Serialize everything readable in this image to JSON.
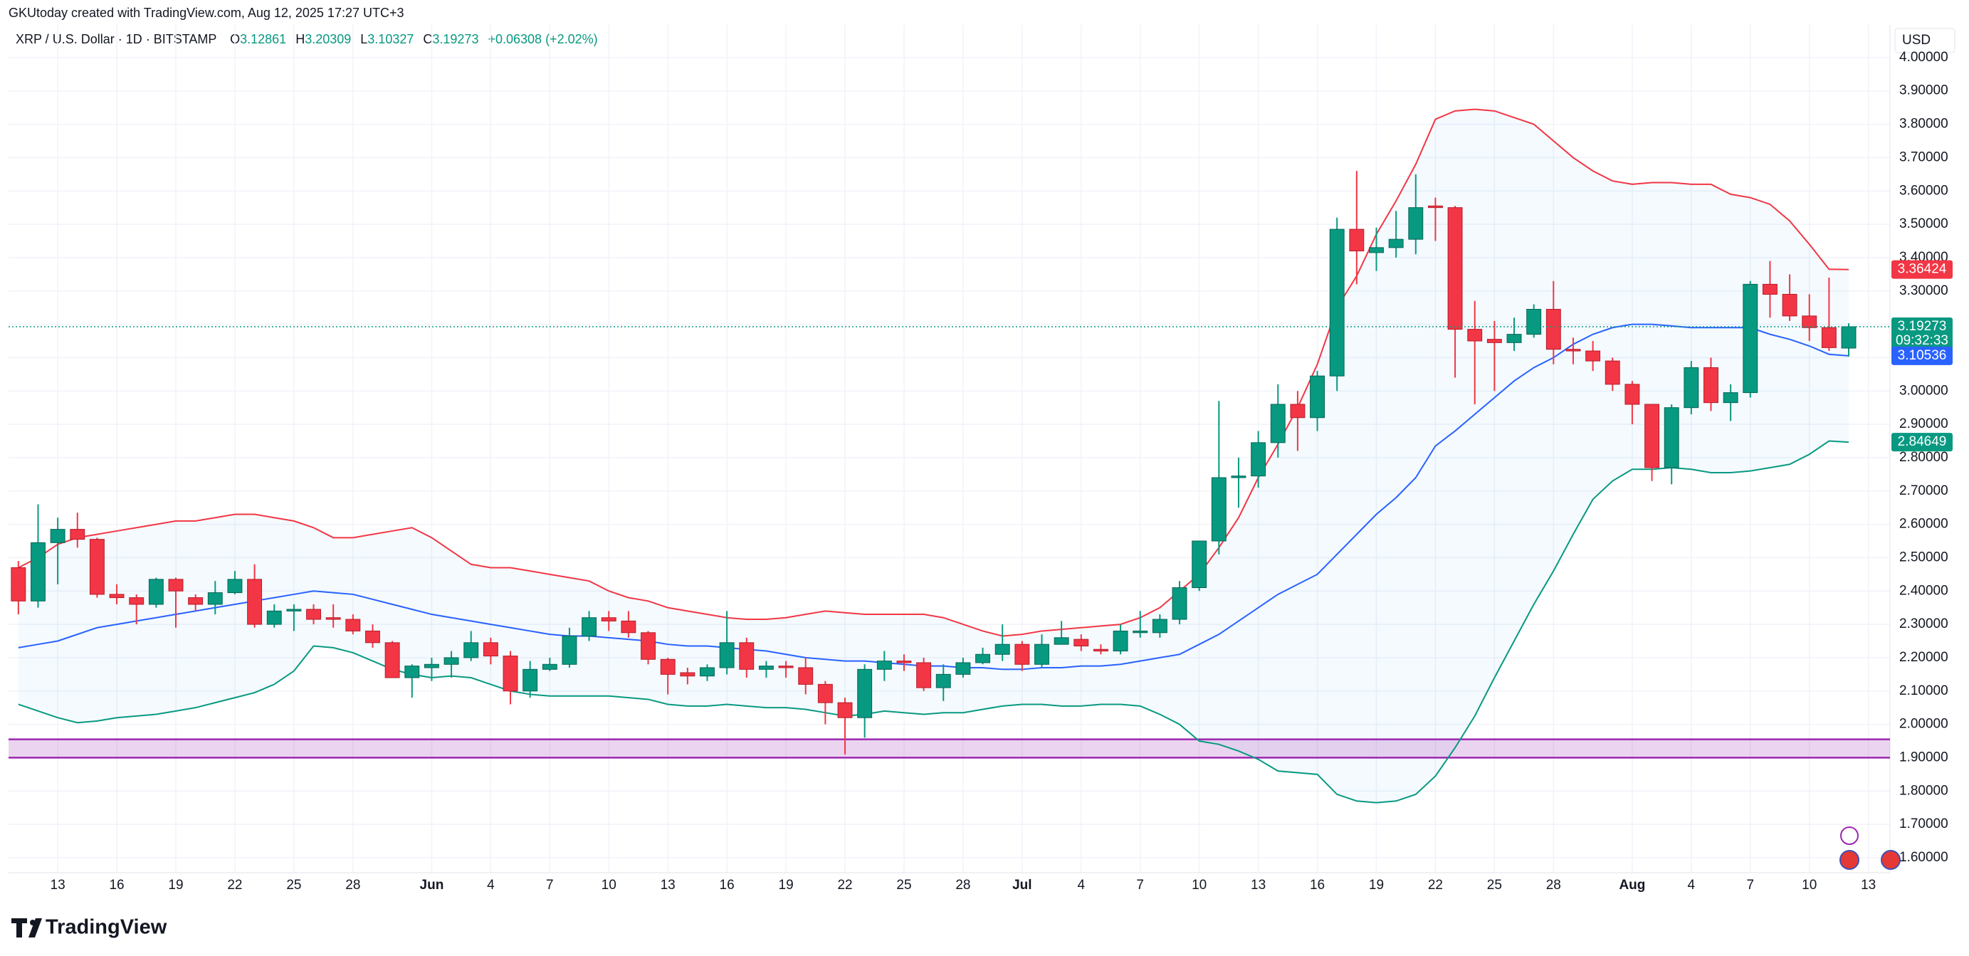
{
  "chart_data": {
    "type": "candlestick",
    "credit": "GKUtoday created with TradingView.com, Aug 12, 2025 17:27 UTC+3",
    "symbol": "XRP / U.S. Dollar · 1D · BITSTAMP",
    "ohlc_labels": [
      "O",
      "H",
      "L",
      "C"
    ],
    "change": "+0.06308 (+2.02%)",
    "currency": "USD",
    "countdown": "09:32:33",
    "brand": "TradingView",
    "up_color": "#089981",
    "down_color": "#f23645",
    "categories": [
      null,
      null,
      "13",
      null,
      null,
      "16",
      null,
      null,
      "19",
      null,
      null,
      "22",
      null,
      null,
      "25",
      null,
      null,
      "28",
      null,
      null,
      null,
      "Jun",
      null,
      null,
      "4",
      null,
      null,
      "7",
      null,
      null,
      "10",
      null,
      null,
      "13",
      null,
      null,
      "16",
      null,
      null,
      "19",
      null,
      null,
      "22",
      null,
      null,
      "25",
      null,
      null,
      "28",
      null,
      null,
      "Jul",
      null,
      null,
      "4",
      null,
      null,
      "7",
      null,
      null,
      "10",
      null,
      null,
      "13",
      null,
      null,
      "16",
      null,
      null,
      "19",
      null,
      null,
      "22",
      null,
      null,
      "25",
      null,
      null,
      "28",
      null,
      null,
      null,
      "Aug",
      null,
      null,
      "4",
      null,
      null,
      "7",
      null,
      null,
      "10",
      null,
      null,
      "13"
    ],
    "open": [
      2.47,
      2.37,
      2.545,
      2.585,
      2.555,
      2.39,
      2.38,
      2.36,
      2.435,
      2.38,
      2.36,
      2.395,
      2.435,
      2.3,
      2.34,
      2.345,
      2.32,
      2.315,
      2.28,
      2.245,
      2.14,
      2.17,
      2.18,
      2.2,
      2.245,
      2.205,
      2.1,
      2.165,
      2.18,
      2.265,
      2.32,
      2.31,
      2.275,
      2.195,
      2.155,
      2.145,
      2.17,
      2.245,
      2.165,
      2.175,
      2.17,
      2.12,
      2.065,
      2.02,
      2.165,
      2.19,
      2.185,
      2.11,
      2.15,
      2.185,
      2.21,
      2.24,
      2.18,
      2.24,
      2.255,
      2.225,
      2.22,
      2.275,
      2.275,
      2.315,
      2.41,
      2.55,
      2.74,
      2.745,
      2.845,
      2.96,
      2.92,
      3.045,
      3.485,
      3.415,
      3.43,
      3.455,
      3.555,
      3.55,
      3.185,
      3.155,
      3.145,
      3.17,
      3.245,
      3.125,
      3.12,
      3.09,
      3.02,
      2.96,
      2.77,
      2.95,
      3.07,
      2.965,
      2.995,
      3.32,
      3.29,
      3.225,
      3.19,
      3.12861,
      null
    ],
    "high": [
      2.49,
      2.66,
      2.62,
      2.635,
      2.56,
      2.42,
      2.39,
      2.44,
      2.44,
      2.39,
      2.43,
      2.46,
      2.48,
      2.36,
      2.36,
      2.36,
      2.36,
      2.33,
      2.3,
      2.25,
      2.18,
      2.2,
      2.22,
      2.28,
      2.26,
      2.22,
      2.19,
      2.2,
      2.29,
      2.34,
      2.34,
      2.34,
      2.28,
      2.2,
      2.17,
      2.18,
      2.34,
      2.26,
      2.19,
      2.19,
      2.2,
      2.13,
      2.08,
      2.18,
      2.22,
      2.21,
      2.2,
      2.18,
      2.2,
      2.23,
      2.3,
      2.25,
      2.27,
      2.31,
      2.27,
      2.24,
      2.3,
      2.34,
      2.33,
      2.43,
      2.55,
      2.97,
      2.8,
      2.88,
      3.02,
      3.0,
      3.06,
      3.52,
      3.66,
      3.49,
      3.54,
      3.65,
      3.58,
      3.555,
      3.27,
      3.21,
      3.22,
      3.26,
      3.33,
      3.16,
      3.15,
      3.1,
      3.03,
      2.96,
      2.96,
      3.09,
      3.1,
      3.02,
      3.33,
      3.39,
      3.35,
      3.29,
      3.34,
      3.20309,
      null
    ],
    "low": [
      2.33,
      2.35,
      2.42,
      2.53,
      2.38,
      2.36,
      2.3,
      2.35,
      2.29,
      2.34,
      2.33,
      2.39,
      2.29,
      2.29,
      2.28,
      2.3,
      2.29,
      2.27,
      2.23,
      2.14,
      2.08,
      2.13,
      2.14,
      2.19,
      2.18,
      2.06,
      2.08,
      2.16,
      2.17,
      2.25,
      2.28,
      2.26,
      2.18,
      2.09,
      2.12,
      2.13,
      2.15,
      2.14,
      2.14,
      2.14,
      2.09,
      2.0,
      1.91,
      1.96,
      2.13,
      2.16,
      2.1,
      2.07,
      2.14,
      2.18,
      2.19,
      2.16,
      2.17,
      2.24,
      2.22,
      2.21,
      2.21,
      2.26,
      2.26,
      2.3,
      2.4,
      2.51,
      2.65,
      2.71,
      2.8,
      2.82,
      2.88,
      3.0,
      3.32,
      3.36,
      3.4,
      3.41,
      3.45,
      3.04,
      2.96,
      3.0,
      3.12,
      3.16,
      3.08,
      3.08,
      3.06,
      3.0,
      2.9,
      2.73,
      2.72,
      2.93,
      2.94,
      2.91,
      2.98,
      3.22,
      3.21,
      3.15,
      3.12,
      3.10327,
      null
    ],
    "close": [
      2.37,
      2.545,
      2.585,
      2.555,
      2.39,
      2.38,
      2.36,
      2.435,
      2.4,
      2.36,
      2.395,
      2.435,
      2.3,
      2.34,
      2.345,
      2.315,
      2.315,
      2.28,
      2.245,
      2.14,
      2.175,
      2.18,
      2.2,
      2.245,
      2.205,
      2.1,
      2.165,
      2.18,
      2.265,
      2.32,
      2.31,
      2.275,
      2.195,
      2.15,
      2.145,
      2.17,
      2.245,
      2.165,
      2.175,
      2.17,
      2.12,
      2.065,
      2.02,
      2.165,
      2.19,
      2.185,
      2.11,
      2.15,
      2.185,
      2.21,
      2.24,
      2.18,
      2.24,
      2.26,
      2.235,
      2.22,
      2.28,
      2.28,
      2.315,
      2.41,
      2.55,
      2.74,
      2.745,
      2.845,
      2.96,
      2.92,
      3.045,
      3.485,
      3.42,
      3.43,
      3.455,
      3.55,
      3.55,
      3.185,
      3.15,
      3.145,
      3.17,
      3.245,
      3.125,
      3.12,
      3.09,
      3.02,
      2.96,
      2.77,
      2.95,
      3.07,
      2.965,
      2.995,
      3.32,
      3.29,
      3.225,
      3.19,
      3.13,
      3.19273,
      null
    ],
    "series": [
      {
        "color": "#f23645",
        "values": [
          2.47,
          2.5,
          2.54,
          2.56,
          2.57,
          2.58,
          2.59,
          2.6,
          2.61,
          2.61,
          2.62,
          2.63,
          2.63,
          2.62,
          2.61,
          2.59,
          2.56,
          2.56,
          2.57,
          2.58,
          2.59,
          2.56,
          2.52,
          2.48,
          2.47,
          2.47,
          2.46,
          2.45,
          2.44,
          2.43,
          2.4,
          2.38,
          2.37,
          2.35,
          2.34,
          2.33,
          2.32,
          2.315,
          2.315,
          2.32,
          2.33,
          2.34,
          2.335,
          2.33,
          2.33,
          2.33,
          2.33,
          2.32,
          2.3,
          2.28,
          2.265,
          2.27,
          2.28,
          2.285,
          2.29,
          2.295,
          2.3,
          2.32,
          2.35,
          2.4,
          2.45,
          2.53,
          2.62,
          2.74,
          2.84,
          2.95,
          3.08,
          3.25,
          3.345,
          3.47,
          3.57,
          3.68,
          3.815,
          3.84,
          3.845,
          3.84,
          3.82,
          3.8,
          3.75,
          3.7,
          3.66,
          3.63,
          3.62,
          3.625,
          3.625,
          3.62,
          3.62,
          3.59,
          3.58,
          3.56,
          3.51,
          3.44,
          3.365,
          3.36424,
          null
        ]
      },
      {
        "color": "#2962ff",
        "values": [
          2.23,
          2.24,
          2.25,
          2.27,
          2.29,
          2.3,
          2.31,
          2.32,
          2.33,
          2.34,
          2.35,
          2.36,
          2.37,
          2.38,
          2.39,
          2.4,
          2.395,
          2.39,
          2.375,
          2.36,
          2.345,
          2.33,
          2.32,
          2.31,
          2.3,
          2.29,
          2.28,
          2.27,
          2.265,
          2.265,
          2.26,
          2.255,
          2.25,
          2.24,
          2.235,
          2.235,
          2.23,
          2.225,
          2.22,
          2.21,
          2.2,
          2.195,
          2.19,
          2.19,
          2.185,
          2.18,
          2.175,
          2.175,
          2.17,
          2.17,
          2.165,
          2.165,
          2.17,
          2.17,
          2.175,
          2.175,
          2.18,
          2.19,
          2.2,
          2.21,
          2.24,
          2.27,
          2.31,
          2.35,
          2.39,
          2.42,
          2.45,
          2.51,
          2.57,
          2.63,
          2.68,
          2.74,
          2.835,
          2.88,
          2.93,
          2.98,
          3.03,
          3.07,
          3.1,
          3.14,
          3.17,
          3.19,
          3.2,
          3.2,
          3.195,
          3.19,
          3.19,
          3.19,
          3.19,
          3.17,
          3.155,
          3.135,
          3.11,
          3.10536,
          null
        ]
      },
      {
        "color": "#089981",
        "values": [
          2.06,
          2.04,
          2.02,
          2.005,
          2.01,
          2.02,
          2.025,
          2.03,
          2.04,
          2.05,
          2.065,
          2.08,
          2.095,
          2.12,
          2.16,
          2.235,
          2.23,
          2.215,
          2.19,
          2.165,
          2.15,
          2.14,
          2.145,
          2.14,
          2.12,
          2.1,
          2.09,
          2.085,
          2.085,
          2.085,
          2.085,
          2.08,
          2.075,
          2.06,
          2.055,
          2.055,
          2.06,
          2.055,
          2.05,
          2.05,
          2.045,
          2.035,
          2.025,
          2.03,
          2.04,
          2.035,
          2.03,
          2.035,
          2.035,
          2.045,
          2.055,
          2.06,
          2.06,
          2.055,
          2.055,
          2.06,
          2.06,
          2.055,
          2.03,
          2.0,
          1.95,
          1.94,
          1.92,
          1.895,
          1.86,
          1.855,
          1.85,
          1.79,
          1.77,
          1.765,
          1.77,
          1.79,
          1.845,
          1.93,
          2.025,
          2.14,
          2.25,
          2.36,
          2.46,
          2.57,
          2.675,
          2.73,
          2.765,
          2.765,
          2.77,
          2.765,
          2.755,
          2.755,
          2.76,
          2.77,
          2.78,
          2.81,
          2.85,
          2.84649,
          null
        ]
      }
    ],
    "band_fill": "#2196f3",
    "zone": {
      "from": 1.9,
      "to": 1.955,
      "color": "#9c27b0"
    },
    "ylim": [
      1.555,
      4.098
    ],
    "yticks": [
      {
        "value": 1.6,
        "label": "1.60000"
      },
      {
        "value": 1.7,
        "label": "1.70000"
      },
      {
        "value": 1.8,
        "label": "1.80000"
      },
      {
        "value": 1.9,
        "label": "1.90000"
      },
      {
        "value": 2.0,
        "label": "2.00000"
      },
      {
        "value": 2.1,
        "label": "2.10000"
      },
      {
        "value": 2.2,
        "label": "2.20000"
      },
      {
        "value": 2.3,
        "label": "2.30000"
      },
      {
        "value": 2.4,
        "label": "2.40000"
      },
      {
        "value": 2.5,
        "label": "2.50000"
      },
      {
        "value": 2.6,
        "label": "2.60000"
      },
      {
        "value": 2.7,
        "label": "2.70000"
      },
      {
        "value": 2.8,
        "label": "2.80000"
      },
      {
        "value": 2.9,
        "label": "2.90000"
      },
      {
        "value": 3.0,
        "label": "3.00000"
      },
      {
        "value": 3.1,
        "label": "3.10000"
      },
      {
        "value": 3.2,
        "label": "3.20000"
      },
      {
        "value": 3.3,
        "label": "3.30000"
      },
      {
        "value": 3.4,
        "label": "3.40000"
      },
      {
        "value": 3.5,
        "label": "3.50000"
      },
      {
        "value": 3.6,
        "label": "3.60000"
      },
      {
        "value": 3.7,
        "label": "3.70000"
      },
      {
        "value": 3.8,
        "label": "3.80000"
      },
      {
        "value": 3.9,
        "label": "3.90000"
      },
      {
        "value": 4.0,
        "label": "4.00000"
      }
    ],
    "grid": true
  }
}
